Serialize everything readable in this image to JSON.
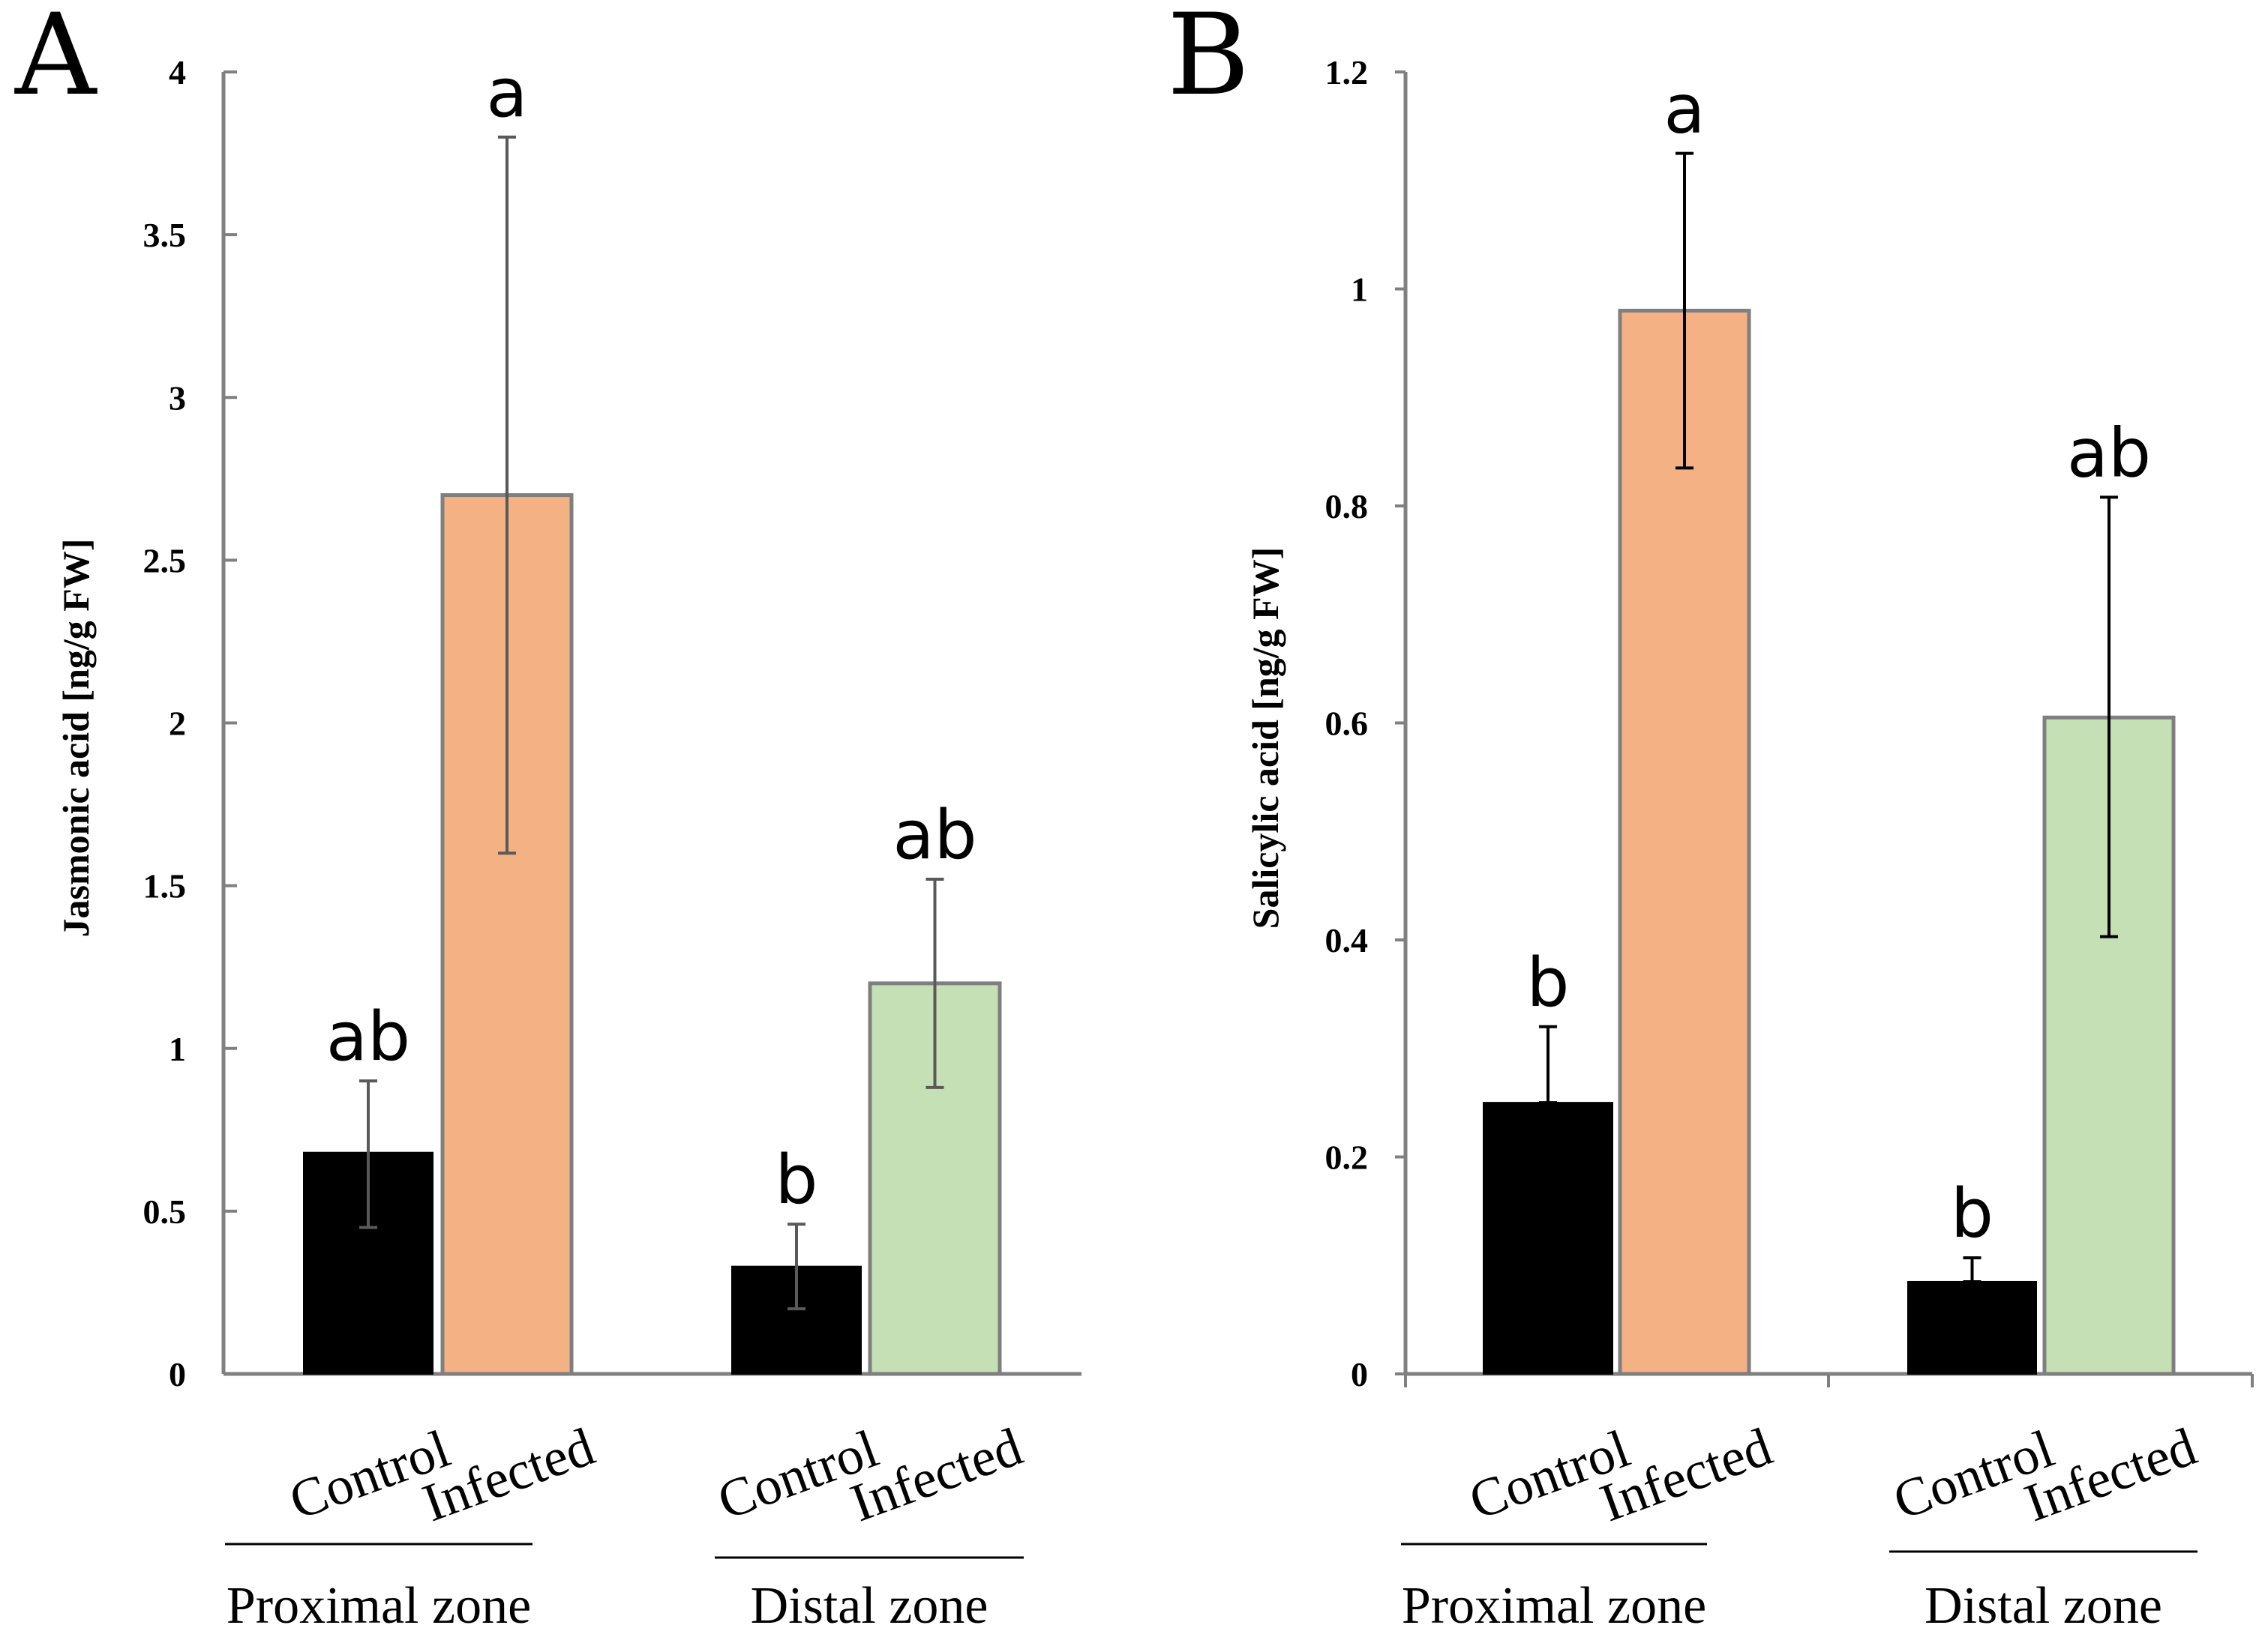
{
  "chart_data": [
    {
      "type": "bar",
      "panel": "A",
      "ylabel": "Jasmonic acid [ng/g FW]",
      "ylim": [
        0,
        4
      ],
      "yticks": [
        0,
        0.5,
        1,
        1.5,
        2,
        2.5,
        3,
        3.5,
        4
      ],
      "ytick_labels": [
        "0",
        "0.5",
        "1",
        "1.5",
        "2",
        "2.5",
        "3",
        "3.5",
        "4"
      ],
      "groups": [
        {
          "name": "Proximal zone",
          "bars": [
            {
              "label": "Control",
              "value": 0.68,
              "err_low": 0.45,
              "err_high": 0.9,
              "color": "#000000",
              "sig": "ab"
            },
            {
              "label": "Infected",
              "value": 2.7,
              "err_low": 1.6,
              "err_high": 3.8,
              "color": "#f4b183",
              "sig": "a"
            }
          ]
        },
        {
          "name": "Distal zone",
          "bars": [
            {
              "label": "Control",
              "value": 0.33,
              "err_low": 0.2,
              "err_high": 0.46,
              "color": "#000000",
              "sig": "b"
            },
            {
              "label": "Infected",
              "value": 1.2,
              "err_low": 0.88,
              "err_high": 1.52,
              "color": "#c5e0b4",
              "sig": "ab"
            }
          ]
        }
      ]
    },
    {
      "type": "bar",
      "panel": "B",
      "ylabel": "Salicylic acid [ng/g FW]",
      "ylim": [
        0,
        1.2
      ],
      "yticks": [
        0,
        0.2,
        0.4,
        0.6,
        0.8,
        1,
        1.2
      ],
      "ytick_labels": [
        "0",
        "0.2",
        "0.4",
        "0.6",
        "0.8",
        "1",
        "1.2"
      ],
      "groups": [
        {
          "name": "Proximal zone",
          "bars": [
            {
              "label": "Control",
              "value": 0.25,
              "err_low": 0.25,
              "err_high": 0.32,
              "color": "#000000",
              "sig": "b"
            },
            {
              "label": "Infected",
              "value": 0.98,
              "err_low": 0.835,
              "err_high": 1.125,
              "color": "#f4b183",
              "sig": "a"
            }
          ]
        },
        {
          "name": "Distal zone",
          "bars": [
            {
              "label": "Control",
              "value": 0.085,
              "err_low": 0.085,
              "err_high": 0.107,
              "color": "#000000",
              "sig": "b"
            },
            {
              "label": "Infected",
              "value": 0.605,
              "err_low": 0.403,
              "err_high": 0.808,
              "color": "#c5e0b4",
              "sig": "ab"
            }
          ]
        }
      ]
    }
  ],
  "style": {
    "axis_color": "#808080",
    "bar_edge_color": "#7f7f7f",
    "errorbar_color_A": "#595959",
    "errorbar_color_B": "#000000",
    "text_color": "#000000"
  }
}
